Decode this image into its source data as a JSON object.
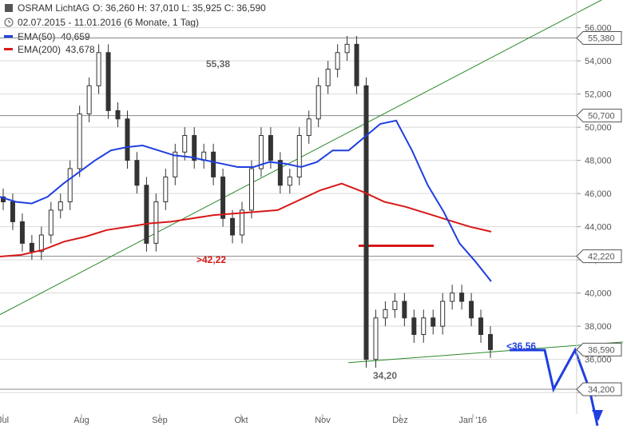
{
  "header": {
    "instrument": "OSRAM LichtAG",
    "ohlc": "O: 36,260  H: 37,010  L: 35,925  C: 36,590",
    "period": "02.07.2015 - 11.01.2016 (6 Monate, 1 Tag)",
    "ema50_label": "EMA(50)",
    "ema50_value": "40,659",
    "ema200_label": "EMA(200)",
    "ema200_value": "43,678",
    "clock_icon": "clock-icon"
  },
  "colors": {
    "candle": "#333333",
    "ema50": "#1f3fe0",
    "ema200": "#d81818",
    "trendline": "#2a8a2a",
    "hline": "#888888",
    "forecast": "#1f3fe0",
    "resistance": "#d81818",
    "grid": "#d9d9d9"
  },
  "chart_data": {
    "type": "line",
    "title": "OSRAM LichtAG",
    "ylim": [
      33.5,
      58.6
    ],
    "y_ticks": [
      "58,000",
      "56,000",
      "54,000",
      "52,000",
      "50,000",
      "48,000",
      "46,000",
      "44,000",
      "42,000",
      "40,000",
      "38,000",
      "36,000",
      "34,000"
    ],
    "x_ticks": [
      "Jul",
      "Aug",
      "Sep",
      "Okt",
      "Nov",
      "Dez",
      "Jan '16"
    ],
    "price_tags": [
      {
        "label": "55,380",
        "value": 55.38
      },
      {
        "label": "50,700",
        "value": 50.7
      },
      {
        "label": "42,220",
        "value": 42.22
      },
      {
        "label": "36,590",
        "value": 36.59
      },
      {
        "label": "34,200",
        "value": 34.2
      }
    ],
    "annotations": [
      {
        "text": "55,38",
        "color": "#666666"
      },
      {
        "text": ">42,22",
        "color": "#d81818"
      },
      {
        "text": "34,20",
        "color": "#666666"
      },
      {
        "text": "<36,56",
        "color": "#1f3fe0"
      }
    ],
    "series": [
      {
        "name": "EMA(50)",
        "values": [
          45.8,
          45.5,
          45.4,
          45.8,
          46.6,
          47.3,
          48.0,
          48.6,
          48.8,
          48.9,
          48.6,
          48.3,
          48.2,
          48.0,
          47.8,
          47.6,
          47.6,
          47.9,
          47.8,
          47.6,
          47.9,
          48.6,
          48.6,
          49.4,
          50.2,
          50.4,
          48.6,
          46.5,
          44.9,
          43.0,
          41.9,
          40.7
        ]
      },
      {
        "name": "EMA(200)",
        "values": [
          42.2,
          42.3,
          42.6,
          43.1,
          43.4,
          43.8,
          44.0,
          44.2,
          44.3,
          44.5,
          44.7,
          44.8,
          44.9,
          45.0,
          45.6,
          46.2,
          46.6,
          46.1,
          45.5,
          45.2,
          44.8,
          44.4,
          44.0,
          43.7
        ]
      },
      {
        "name": "Close",
        "values": [
          45.5,
          44.3,
          43.0,
          42.5,
          43.5,
          45.0,
          45.5,
          47.5,
          50.8,
          52.5,
          54.5,
          51.0,
          50.5,
          48.0,
          46.5,
          43.0,
          45.5,
          47.0,
          48.5,
          49.5,
          48.0,
          48.5,
          47.0,
          44.5,
          43.5,
          45.0,
          47.5,
          49.5,
          48.0,
          46.5,
          47.0,
          49.5,
          50.5,
          52.5,
          53.5,
          54.5,
          55.0,
          52.5,
          36.0,
          38.5,
          39.0,
          39.5,
          38.5,
          37.5,
          38.5,
          38.0,
          39.5,
          40.0,
          39.5,
          38.5,
          37.5,
          36.59
        ]
      }
    ],
    "lines": [
      {
        "name": "uptrend",
        "from": [
          0,
          38.7
        ],
        "to": [
          1,
          58.3
        ]
      },
      {
        "name": "support-trend",
        "from": [
          0.56,
          35.8
        ],
        "to": [
          1,
          37.0
        ]
      }
    ],
    "forecast_path": [
      36.56,
      36.56,
      36.56,
      34.2,
      36.56,
      34.2,
      32.0
    ]
  }
}
